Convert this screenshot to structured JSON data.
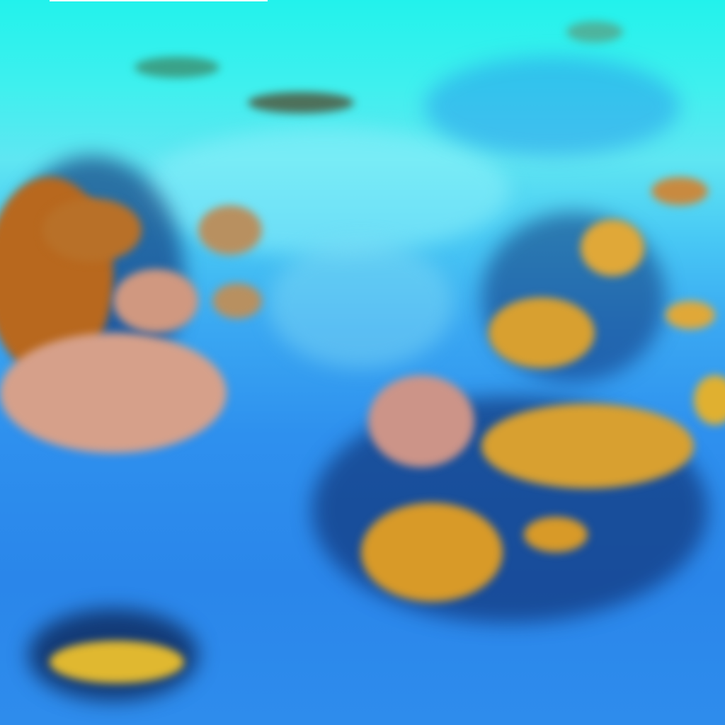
{
  "image": {
    "kind": "false-color satellite cloud imagery",
    "colors": {
      "high_cloud_cyan": "#3ff0ee",
      "ocean_blue": "#2a86ea",
      "deep_cloud_orange": "#c98a2a",
      "low_cloud_pink": "#d9a08a",
      "shadow_navy": "#0c2a70"
    }
  }
}
